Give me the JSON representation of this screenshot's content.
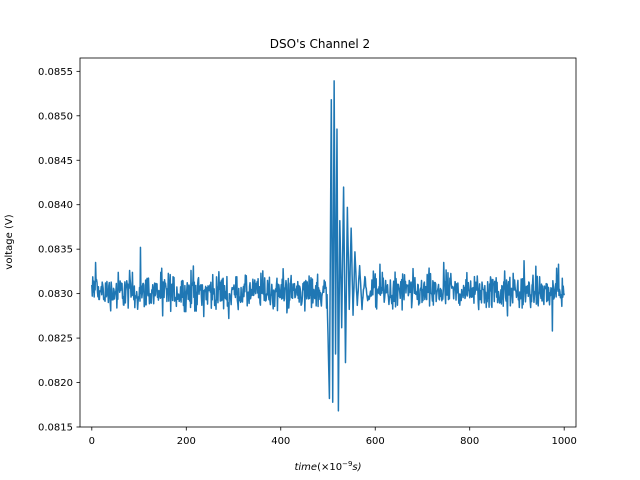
{
  "chart_data": {
    "type": "line",
    "title": "DSO's Channel 2",
    "xlabel_main": "time",
    "xlabel_unit_prefix": "(×10",
    "xlabel_unit_exp": "−9",
    "xlabel_unit_suffix": "s)",
    "ylabel": "voltage (V)",
    "xlim": [
      -25,
      1025
    ],
    "ylim": [
      0.0815,
      0.08565
    ],
    "xticks": [
      0,
      200,
      400,
      600,
      800,
      1000
    ],
    "xtick_labels": [
      "0",
      "200",
      "400",
      "600",
      "800",
      "1000"
    ],
    "yticks": [
      0.0815,
      0.082,
      0.0825,
      0.083,
      0.0835,
      0.084,
      0.0845,
      0.085,
      0.0855
    ],
    "ytick_labels": [
      "0.0815",
      "0.0820",
      "0.0825",
      "0.0830",
      "0.0835",
      "0.0840",
      "0.0845",
      "0.0850",
      "0.0855"
    ],
    "grid": false,
    "series": [
      {
        "color": "#1f77b4",
        "baseline": 0.08302,
        "noise_amplitude": 0.00012,
        "x": [
          0,
          1000
        ],
        "burst": {
          "x": [
            498,
            503,
            507,
            510,
            513,
            516,
            519,
            522,
            525,
            529,
            533,
            537,
            541,
            545,
            549,
            553,
            557,
            562,
            567,
            572,
            578,
            584,
            590
          ],
          "y": [
            0.08297,
            0.08185,
            0.0852,
            0.08175,
            0.08542,
            0.08235,
            0.08485,
            0.0817,
            0.08385,
            0.08265,
            0.0842,
            0.0822,
            0.084,
            0.0828,
            0.08375,
            0.08275,
            0.08345,
            0.08285,
            0.0833,
            0.08285,
            0.0832,
            0.08292,
            0.08302
          ]
        },
        "spikes": [
          [
            8,
            0.08335
          ],
          [
            103,
            0.08352
          ],
          [
            150,
            0.08275
          ],
          [
            215,
            0.08331
          ],
          [
            290,
            0.08272
          ],
          [
            405,
            0.08328
          ],
          [
            610,
            0.08333
          ],
          [
            745,
            0.08335
          ],
          [
            880,
            0.08275
          ],
          [
            915,
            0.08337
          ],
          [
            975,
            0.08258
          ],
          [
            988,
            0.08333
          ]
        ]
      }
    ]
  }
}
